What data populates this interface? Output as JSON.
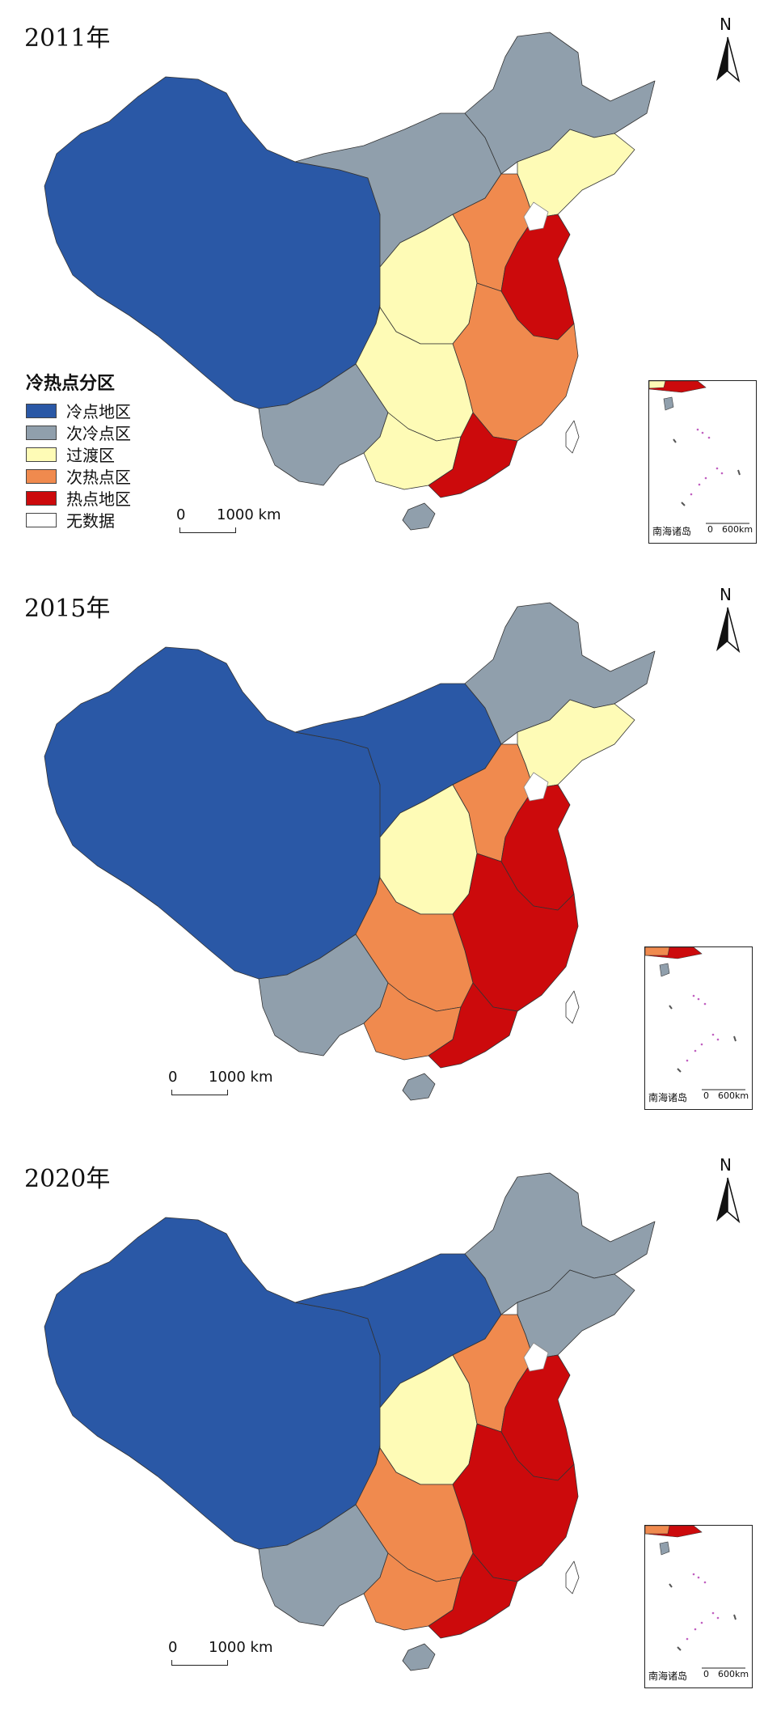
{
  "legend": {
    "title": "冷热点分区",
    "items": [
      {
        "label": "冷点地区",
        "color": "#2a58a6"
      },
      {
        "label": "次冷点区",
        "color": "#909fac"
      },
      {
        "label": "过渡区",
        "color": "#fefbb6"
      },
      {
        "label": "次热点区",
        "color": "#f08a4e"
      },
      {
        "label": "热点地区",
        "color": "#cc0a0c"
      },
      {
        "label": "无数据",
        "color": "#ffffff"
      }
    ]
  },
  "north_label": "N",
  "scale": {
    "zero": "0",
    "distance": "1000 km"
  },
  "inset": {
    "label": "南海诸岛",
    "zero": "0",
    "distance": "600km"
  },
  "panels": [
    {
      "year": "2011年",
      "regions": {
        "west": "#2a58a6",
        "north_mid": "#909fac",
        "northeast": "#909fac",
        "liaoning": "#fefbb6",
        "shanxi_shaanxi": "#fefbb6",
        "hebei_henan": "#f08a4e",
        "shandong_jiangsu": "#cc0a0c",
        "central_east": "#f08a4e",
        "hubei_hunan": "#fefbb6",
        "southwest": "#909fac",
        "guangxi": "#fefbb6",
        "guangdong": "#cc0a0c",
        "hainan": "#909fac"
      }
    },
    {
      "year": "2015年",
      "regions": {
        "west": "#2a58a6",
        "north_mid": "#2a58a6",
        "northeast": "#909fac",
        "liaoning": "#fefbb6",
        "shanxi_shaanxi": "#fefbb6",
        "hebei_henan": "#f08a4e",
        "shandong_jiangsu": "#cc0a0c",
        "central_east": "#cc0a0c",
        "hubei_hunan": "#f08a4e",
        "southwest": "#909fac",
        "guangxi": "#f08a4e",
        "guangdong": "#cc0a0c",
        "hainan": "#909fac"
      }
    },
    {
      "year": "2020年",
      "regions": {
        "west": "#2a58a6",
        "north_mid": "#2a58a6",
        "northeast": "#909fac",
        "liaoning": "#909fac",
        "shanxi_shaanxi": "#fefbb6",
        "hebei_henan": "#f08a4e",
        "shandong_jiangsu": "#cc0a0c",
        "central_east": "#cc0a0c",
        "hubei_hunan": "#f08a4e",
        "southwest": "#909fac",
        "guangxi": "#f08a4e",
        "guangdong": "#cc0a0c",
        "hainan": "#909fac"
      }
    }
  ]
}
